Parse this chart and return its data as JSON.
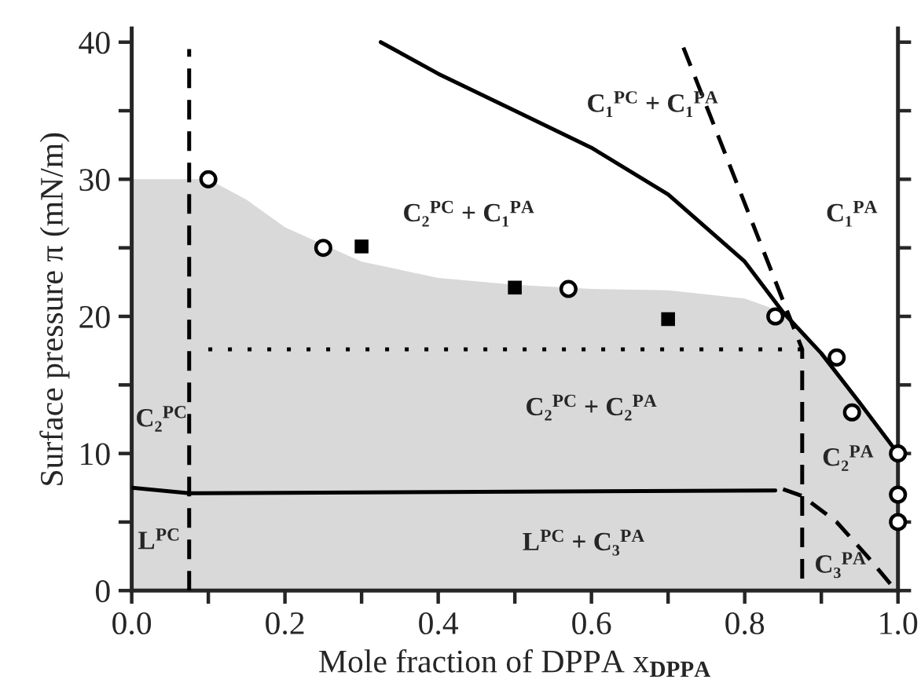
{
  "chart_data": {
    "type": "line",
    "xlabel": "Mole fraction of DPPA x$_{DPPA}$",
    "ylabel": "Surface pressure π (mN/m)",
    "xlim": [
      0,
      1.0
    ],
    "ylim": [
      0,
      41
    ],
    "xticks": [
      {
        "value": 0,
        "label": "0.0"
      },
      {
        "value": 0.1,
        "label": null
      },
      {
        "value": 0.2,
        "label": "0.2"
      },
      {
        "value": 0.3,
        "label": null
      },
      {
        "value": 0.4,
        "label": "0.4"
      },
      {
        "value": 0.5,
        "label": null
      },
      {
        "value": 0.6,
        "label": "0.6"
      },
      {
        "value": 0.7,
        "label": null
      },
      {
        "value": 0.8,
        "label": "0.8"
      },
      {
        "value": 0.9,
        "label": null
      },
      {
        "value": 1.0,
        "label": "1.0"
      }
    ],
    "yticks": [
      0,
      {
        "value": 5,
        "label": null
      },
      10,
      {
        "value": 15,
        "label": null
      },
      20,
      {
        "value": 25,
        "label": null
      },
      30,
      {
        "value": 35,
        "label": null
      },
      40
    ],
    "grid": false,
    "legend": false,
    "series": [
      {
        "type": "area",
        "color": "#d9d9d9",
        "x": [
          0,
          0.1,
          0.15,
          0.2,
          0.3,
          0.4,
          0.5,
          0.6,
          0.7,
          0.8,
          0.85,
          0.9,
          0.95,
          1.0
        ],
        "values": [
          30,
          30,
          28.5,
          26.5,
          24.0,
          22.8,
          22.3,
          22.0,
          21.9,
          21.3,
          20.3,
          17.3,
          13.7,
          10
        ]
      },
      {
        "color": "#000000",
        "line_style": "solid",
        "x": [
          0.325,
          0.4,
          0.5,
          0.6,
          0.7,
          0.8,
          0.85,
          0.9,
          0.95,
          1.0
        ],
        "values": [
          40,
          37.7,
          35.0,
          32.3,
          28.9,
          24.0,
          20.3,
          17.3,
          13.7,
          10
        ]
      },
      {
        "color": "#000000",
        "line_style": "dashed",
        "x": [
          0.72,
          0.875,
          0.875
        ],
        "values": [
          39.6,
          17.6,
          0
        ]
      },
      {
        "color": "#000000",
        "line_style": "dashed",
        "x": [
          0.075,
          0.075
        ],
        "values": [
          0,
          39.5
        ]
      },
      {
        "color": "#000000",
        "line_style": "dotted",
        "x": [
          0.1,
          0.875
        ],
        "values": [
          17.6,
          17.6
        ]
      },
      {
        "color": "#000000",
        "line_style": "solid",
        "x": [
          0,
          0.075,
          0.84
        ],
        "values": [
          7.5,
          7.1,
          7.3
        ]
      },
      {
        "color": "#000000",
        "line_style": "dashed",
        "x": [
          0.85,
          0.875,
          0.92,
          0.96,
          0.99
        ],
        "values": [
          7.4,
          6.9,
          5.0,
          2.5,
          0.5
        ]
      },
      {
        "type": "scatter",
        "color": "#000000",
        "marker": "circle",
        "x": [
          0.1,
          0.25,
          0.57,
          0.84,
          0.92,
          0.94,
          1.0,
          1.0,
          1.0
        ],
        "values": [
          30,
          25,
          22,
          20,
          17,
          13,
          10,
          7,
          5
        ]
      },
      {
        "type": "scatter",
        "color": "#000000",
        "marker": "square",
        "x": [
          0.3,
          0.5,
          0.7
        ],
        "values": [
          25.1,
          22.1,
          19.8
        ]
      }
    ],
    "annotations": [
      "C₁$^{PC}$ + C₁$^{PA}$",
      "C₂$^{PC}$ + C₁$^{PA}$",
      "C₁$^{PA}$",
      "C₂$^{PC}$",
      "C₂$^{PC}$ + C₂$^{PA}$",
      "L$^{PC}$",
      "L$^{PC}$ + C₃$^{PA}$",
      "C₂$^{PA}$",
      "C₃$^{PA}$"
    ]
  }
}
